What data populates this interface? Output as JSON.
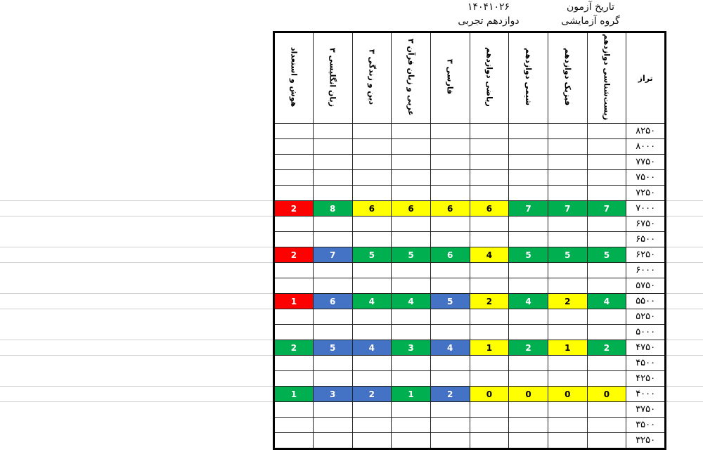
{
  "header": {
    "exam_date_label": "تاریخ آزمون",
    "exam_date": "۱۴۰۴۱۰۲۶",
    "group_label": "گروه آزمایشی",
    "group": "دوازدهم تجربی"
  },
  "colors": {
    "red": "#ff0000",
    "green": "#00b050",
    "yellow": "#ffff00",
    "blue": "#4472c4"
  },
  "table": {
    "columns": [
      "تراز",
      "زیست‌شناسی دوازدهم",
      "فیزیک دوازدهم",
      "شیمی دوازدهم",
      "ریاضی دوازدهم",
      "فارسی ۳",
      "عربی و زبان قرآن ۳",
      "دین و زندگی ۳",
      "زبان انگلیسی ۳",
      "هوش و استعداد"
    ],
    "rows": [
      {
        "level": "۸۲۵۰",
        "cells": []
      },
      {
        "level": "۸۰۰۰",
        "cells": []
      },
      {
        "level": "۷۷۵۰",
        "cells": []
      },
      {
        "level": "۷۵۰۰",
        "cells": []
      },
      {
        "level": "۷۲۵۰",
        "cells": []
      },
      {
        "level": "۷۰۰۰",
        "cells": [
          {
            "v": "7",
            "c": "green"
          },
          {
            "v": "7",
            "c": "green"
          },
          {
            "v": "7",
            "c": "green"
          },
          {
            "v": "6",
            "c": "yellow"
          },
          {
            "v": "6",
            "c": "yellow"
          },
          {
            "v": "6",
            "c": "yellow"
          },
          {
            "v": "6",
            "c": "yellow"
          },
          {
            "v": "8",
            "c": "green"
          },
          {
            "v": "2",
            "c": "red"
          }
        ]
      },
      {
        "level": "۶۷۵۰",
        "cells": []
      },
      {
        "level": "۶۵۰۰",
        "cells": []
      },
      {
        "level": "۶۲۵۰",
        "cells": [
          {
            "v": "5",
            "c": "green"
          },
          {
            "v": "5",
            "c": "green"
          },
          {
            "v": "5",
            "c": "green"
          },
          {
            "v": "4",
            "c": "yellow"
          },
          {
            "v": "6",
            "c": "green"
          },
          {
            "v": "5",
            "c": "green"
          },
          {
            "v": "5",
            "c": "green"
          },
          {
            "v": "7",
            "c": "blue"
          },
          {
            "v": "2",
            "c": "red"
          }
        ]
      },
      {
        "level": "۶۰۰۰",
        "cells": []
      },
      {
        "level": "۵۷۵۰",
        "cells": []
      },
      {
        "level": "۵۵۰۰",
        "cells": [
          {
            "v": "4",
            "c": "green"
          },
          {
            "v": "2",
            "c": "yellow"
          },
          {
            "v": "4",
            "c": "green"
          },
          {
            "v": "2",
            "c": "yellow"
          },
          {
            "v": "5",
            "c": "blue"
          },
          {
            "v": "4",
            "c": "green"
          },
          {
            "v": "4",
            "c": "green"
          },
          {
            "v": "6",
            "c": "blue"
          },
          {
            "v": "1",
            "c": "red"
          }
        ]
      },
      {
        "level": "۵۲۵۰",
        "cells": []
      },
      {
        "level": "۵۰۰۰",
        "cells": []
      },
      {
        "level": "۴۷۵۰",
        "cells": [
          {
            "v": "2",
            "c": "green"
          },
          {
            "v": "1",
            "c": "yellow"
          },
          {
            "v": "2",
            "c": "green"
          },
          {
            "v": "1",
            "c": "yellow"
          },
          {
            "v": "4",
            "c": "blue"
          },
          {
            "v": "3",
            "c": "green"
          },
          {
            "v": "4",
            "c": "blue"
          },
          {
            "v": "5",
            "c": "blue"
          },
          {
            "v": "2",
            "c": "green"
          }
        ]
      },
      {
        "level": "۴۵۰۰",
        "cells": []
      },
      {
        "level": "۴۲۵۰",
        "cells": []
      },
      {
        "level": "۴۰۰۰",
        "cells": [
          {
            "v": "0",
            "c": "yellow"
          },
          {
            "v": "0",
            "c": "yellow"
          },
          {
            "v": "0",
            "c": "yellow"
          },
          {
            "v": "0",
            "c": "yellow"
          },
          {
            "v": "2",
            "c": "blue"
          },
          {
            "v": "1",
            "c": "green"
          },
          {
            "v": "2",
            "c": "blue"
          },
          {
            "v": "3",
            "c": "blue"
          },
          {
            "v": "1",
            "c": "green"
          }
        ]
      },
      {
        "level": "۳۷۵۰",
        "cells": []
      },
      {
        "level": "۳۵۰۰",
        "cells": []
      },
      {
        "level": "۳۲۵۰",
        "cells": []
      }
    ]
  }
}
